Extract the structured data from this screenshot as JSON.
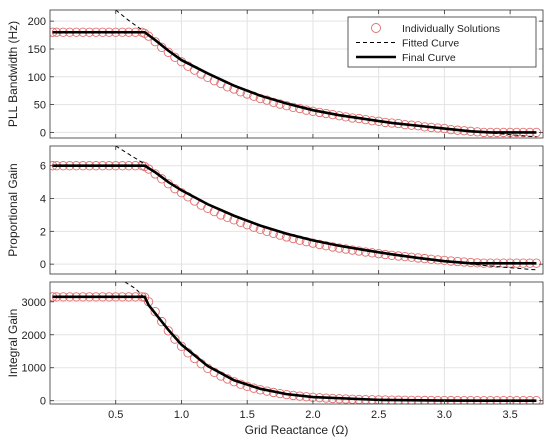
{
  "chart_data": [
    {
      "type": "line",
      "ylabel": "PLL Bandwidth (Hz)",
      "xlabel": "",
      "xlim": [
        0,
        3.75
      ],
      "ylim": [
        -10,
        220
      ],
      "xticks": [
        0.5,
        1.0,
        1.5,
        2.0,
        2.5,
        3.0,
        3.5
      ],
      "yticks": [
        0,
        50,
        100,
        150,
        200
      ],
      "ytick_labels": [
        "0",
        "50",
        "100",
        "150",
        "200"
      ],
      "grid": true,
      "legend": {
        "placement": "top-right",
        "entries": [
          {
            "label": "Individually Solutions",
            "style": "circle-marker",
            "color": "#e07070"
          },
          {
            "label": "Fitted Curve",
            "style": "dashed",
            "color": "#000000"
          },
          {
            "label": "Final Curve",
            "style": "solid-thick",
            "color": "#000000"
          }
        ]
      },
      "series": [
        {
          "name": "Individually Solutions",
          "kind": "markers",
          "color": "#e07070",
          "x": [
            0.02,
            0.05,
            0.1,
            0.15,
            0.2,
            0.25,
            0.3,
            0.35,
            0.4,
            0.45,
            0.5,
            0.55,
            0.6,
            0.65,
            0.7,
            0.72,
            0.75,
            0.8,
            0.85,
            0.9,
            0.95,
            1.0,
            1.05,
            1.1,
            1.15,
            1.2,
            1.25,
            1.3,
            1.35,
            1.4,
            1.45,
            1.5,
            1.55,
            1.6,
            1.65,
            1.7,
            1.75,
            1.8,
            1.85,
            1.9,
            1.95,
            2.0,
            2.05,
            2.1,
            2.15,
            2.2,
            2.25,
            2.3,
            2.35,
            2.4,
            2.45,
            2.5,
            2.55,
            2.6,
            2.65,
            2.7,
            2.75,
            2.8,
            2.85,
            2.9,
            2.95,
            3.0,
            3.05,
            3.1,
            3.15,
            3.2,
            3.25,
            3.3,
            3.35,
            3.4,
            3.45,
            3.5,
            3.55,
            3.6,
            3.65,
            3.7
          ],
          "y": [
            180,
            180,
            180,
            180,
            180,
            180,
            180,
            180,
            180,
            180,
            180,
            180,
            180,
            180,
            180,
            178,
            173,
            163,
            153,
            144,
            135,
            127,
            119,
            112,
            105,
            99,
            93,
            88,
            82,
            78,
            73,
            69,
            65,
            61,
            58,
            54,
            51,
            48,
            45,
            43,
            40,
            38,
            36,
            34,
            32,
            30,
            28,
            26,
            25,
            23,
            21,
            20,
            18,
            17,
            16,
            14,
            13,
            12,
            10,
            9,
            8,
            7,
            5,
            4,
            3,
            2,
            1,
            0,
            0,
            0,
            0,
            0,
            0,
            0,
            0,
            0
          ]
        },
        {
          "name": "Fitted Curve",
          "kind": "dashed",
          "color": "#000000",
          "x": [
            0.5,
            0.6,
            0.7,
            0.8,
            0.9,
            1.0,
            1.2,
            1.4,
            1.6,
            1.8,
            2.0,
            2.2,
            2.4,
            2.6,
            2.8,
            3.0,
            3.2,
            3.4,
            3.6,
            3.7
          ],
          "y": [
            220,
            201,
            184,
            166,
            147,
            130,
            106,
            84,
            66,
            52,
            40,
            31,
            24,
            17,
            12,
            7,
            2,
            -2,
            -6,
            -8
          ]
        },
        {
          "name": "Final Curve",
          "kind": "solid",
          "color": "#000000",
          "x": [
            0.02,
            0.2,
            0.4,
            0.6,
            0.72,
            0.8,
            0.9,
            1.0,
            1.2,
            1.4,
            1.6,
            1.8,
            2.0,
            2.2,
            2.4,
            2.6,
            2.8,
            3.0,
            3.2,
            3.35,
            3.5,
            3.7
          ],
          "y": [
            180,
            180,
            180,
            180,
            180,
            166,
            147,
            130,
            106,
            84,
            66,
            52,
            40,
            31,
            24,
            17,
            12,
            7,
            2,
            0,
            0,
            0
          ]
        }
      ]
    },
    {
      "type": "line",
      "ylabel": "Proportional Gain",
      "xlabel": "",
      "xlim": [
        0,
        3.75
      ],
      "ylim": [
        -0.6,
        7.2
      ],
      "xticks": [
        0.5,
        1.0,
        1.5,
        2.0,
        2.5,
        3.0,
        3.5
      ],
      "yticks": [
        0,
        2,
        4,
        6
      ],
      "ytick_labels": [
        "0",
        "2",
        "4",
        "6"
      ],
      "grid": true,
      "series": [
        {
          "name": "Individually Solutions",
          "kind": "markers",
          "color": "#e07070",
          "x": [
            0.02,
            0.05,
            0.1,
            0.15,
            0.2,
            0.25,
            0.3,
            0.35,
            0.4,
            0.45,
            0.5,
            0.55,
            0.6,
            0.65,
            0.7,
            0.72,
            0.75,
            0.8,
            0.85,
            0.9,
            0.95,
            1.0,
            1.05,
            1.1,
            1.15,
            1.2,
            1.25,
            1.3,
            1.35,
            1.4,
            1.45,
            1.5,
            1.55,
            1.6,
            1.65,
            1.7,
            1.75,
            1.8,
            1.85,
            1.9,
            1.95,
            2.0,
            2.05,
            2.1,
            2.15,
            2.2,
            2.25,
            2.3,
            2.35,
            2.4,
            2.45,
            2.5,
            2.55,
            2.6,
            2.65,
            2.7,
            2.75,
            2.8,
            2.85,
            2.9,
            2.95,
            3.0,
            3.05,
            3.1,
            3.15,
            3.2,
            3.25,
            3.3,
            3.35,
            3.4,
            3.45,
            3.5,
            3.55,
            3.6,
            3.65,
            3.7
          ],
          "y": [
            6.0,
            6.0,
            6.0,
            6.0,
            6.0,
            6.0,
            6.0,
            6.0,
            6.0,
            6.0,
            6.0,
            6.0,
            6.0,
            6.0,
            6.0,
            5.95,
            5.8,
            5.5,
            5.2,
            4.9,
            4.6,
            4.35,
            4.1,
            3.85,
            3.6,
            3.4,
            3.2,
            3.0,
            2.85,
            2.7,
            2.55,
            2.4,
            2.25,
            2.12,
            2.0,
            1.88,
            1.77,
            1.66,
            1.56,
            1.46,
            1.37,
            1.28,
            1.2,
            1.12,
            1.05,
            0.98,
            0.92,
            0.86,
            0.8,
            0.74,
            0.69,
            0.64,
            0.59,
            0.54,
            0.5,
            0.46,
            0.42,
            0.38,
            0.34,
            0.3,
            0.26,
            0.23,
            0.19,
            0.16,
            0.13,
            0.1,
            0.08,
            0.06,
            0.06,
            0.06,
            0.06,
            0.06,
            0.06,
            0.06,
            0.06,
            0.06
          ]
        },
        {
          "name": "Fitted Curve",
          "kind": "dashed",
          "color": "#000000",
          "x": [
            0.5,
            0.6,
            0.7,
            0.8,
            0.9,
            1.0,
            1.2,
            1.4,
            1.6,
            1.8,
            2.0,
            2.2,
            2.4,
            2.6,
            2.8,
            3.0,
            3.2,
            3.4,
            3.6,
            3.7
          ],
          "y": [
            7.2,
            6.7,
            6.2,
            5.6,
            5.0,
            4.5,
            3.65,
            2.95,
            2.35,
            1.85,
            1.45,
            1.12,
            0.85,
            0.6,
            0.38,
            0.18,
            0.0,
            -0.15,
            -0.28,
            -0.35
          ]
        },
        {
          "name": "Final Curve",
          "kind": "solid",
          "color": "#000000",
          "x": [
            0.02,
            0.2,
            0.4,
            0.6,
            0.72,
            0.8,
            0.9,
            1.0,
            1.2,
            1.4,
            1.6,
            1.8,
            2.0,
            2.2,
            2.4,
            2.6,
            2.8,
            3.0,
            3.2,
            3.35,
            3.5,
            3.7
          ],
          "y": [
            6.0,
            6.0,
            6.0,
            6.0,
            6.0,
            5.6,
            5.0,
            4.5,
            3.65,
            2.95,
            2.35,
            1.85,
            1.45,
            1.12,
            0.85,
            0.6,
            0.38,
            0.18,
            0.05,
            0.05,
            0.05,
            0.05
          ]
        }
      ]
    },
    {
      "type": "line",
      "ylabel": "Integral Gain",
      "xlabel": "Grid Reactance (Ω)",
      "xlim": [
        0,
        3.75
      ],
      "ylim": [
        -100,
        3600
      ],
      "xticks": [
        0.5,
        1.0,
        1.5,
        2.0,
        2.5,
        3.0,
        3.5
      ],
      "xtick_labels": [
        "0.5",
        "1.0",
        "1.5",
        "2.0",
        "2.5",
        "3.0",
        "3.5"
      ],
      "yticks": [
        0,
        1000,
        2000,
        3000
      ],
      "ytick_labels": [
        "0",
        "1000",
        "2000",
        "3000"
      ],
      "grid": true,
      "series": [
        {
          "name": "Individually Solutions",
          "kind": "markers",
          "color": "#e07070",
          "x": [
            0.02,
            0.05,
            0.1,
            0.15,
            0.2,
            0.25,
            0.3,
            0.35,
            0.4,
            0.45,
            0.5,
            0.55,
            0.6,
            0.65,
            0.7,
            0.72,
            0.75,
            0.8,
            0.85,
            0.9,
            0.95,
            1.0,
            1.05,
            1.1,
            1.15,
            1.2,
            1.25,
            1.3,
            1.35,
            1.4,
            1.45,
            1.5,
            1.55,
            1.6,
            1.65,
            1.7,
            1.75,
            1.8,
            1.85,
            1.9,
            1.95,
            2.0,
            2.05,
            2.1,
            2.15,
            2.2,
            2.25,
            2.3,
            2.35,
            2.4,
            2.45,
            2.5,
            2.55,
            2.6,
            2.65,
            2.7,
            2.75,
            2.8,
            2.85,
            2.9,
            2.95,
            3.0,
            3.05,
            3.1,
            3.15,
            3.2,
            3.25,
            3.3,
            3.35,
            3.4,
            3.45,
            3.5,
            3.55,
            3.6,
            3.65,
            3.7
          ],
          "y": [
            3150,
            3150,
            3150,
            3150,
            3150,
            3150,
            3150,
            3150,
            3150,
            3150,
            3150,
            3150,
            3150,
            3150,
            3150,
            3140,
            3000,
            2700,
            2400,
            2120,
            1870,
            1650,
            1450,
            1280,
            1120,
            980,
            860,
            750,
            660,
            575,
            500,
            435,
            380,
            330,
            290,
            250,
            215,
            185,
            160,
            140,
            120,
            103,
            90,
            78,
            67,
            58,
            50,
            43,
            37,
            32,
            28,
            24,
            20,
            17,
            15,
            13,
            11,
            9,
            8,
            7,
            6,
            5,
            4,
            3,
            3,
            2,
            2,
            2,
            1,
            1,
            1,
            1,
            1,
            1,
            1,
            1
          ]
        },
        {
          "name": "Fitted Curve",
          "kind": "dashed",
          "color": "#000000",
          "x": [
            0.57,
            0.65,
            0.7,
            0.75,
            0.8,
            0.9,
            1.0,
            1.2,
            1.4,
            1.6,
            1.8,
            2.0,
            2.5,
            3.0,
            3.7
          ],
          "y": [
            3600,
            3400,
            3200,
            2900,
            2650,
            2150,
            1700,
            1050,
            620,
            360,
            200,
            110,
            25,
            5,
            0
          ]
        },
        {
          "name": "Final Curve",
          "kind": "solid",
          "color": "#000000",
          "x": [
            0.02,
            0.2,
            0.4,
            0.6,
            0.72,
            0.75,
            0.8,
            0.9,
            1.0,
            1.2,
            1.4,
            1.6,
            1.8,
            2.0,
            2.5,
            3.0,
            3.35,
            3.7
          ],
          "y": [
            3150,
            3150,
            3150,
            3150,
            3150,
            2900,
            2650,
            2150,
            1700,
            1050,
            620,
            360,
            200,
            110,
            25,
            5,
            0,
            0
          ]
        }
      ]
    }
  ]
}
